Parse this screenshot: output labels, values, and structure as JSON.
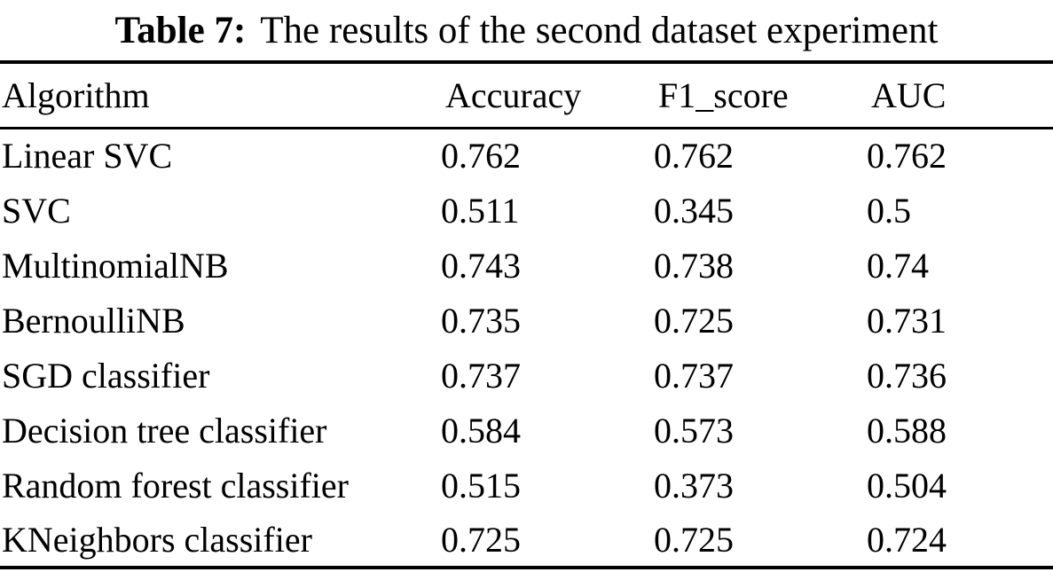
{
  "caption": {
    "label": "Table 7:",
    "text": "The results of the second dataset experiment"
  },
  "table": {
    "columns": [
      "Algorithm",
      "Accuracy",
      "F1_score",
      "AUC"
    ],
    "rows": [
      [
        "Linear SVC",
        "0.762",
        "0.762",
        "0.762"
      ],
      [
        "SVC",
        "0.511",
        "0.345",
        "0.5"
      ],
      [
        "MultinomialNB",
        "0.743",
        "0.738",
        "0.74"
      ],
      [
        "BernoulliNB",
        "0.735",
        "0.725",
        "0.731"
      ],
      [
        "SGD classifier",
        "0.737",
        "0.737",
        "0.736"
      ],
      [
        "Decision tree classifier",
        "0.584",
        "0.573",
        "0.588"
      ],
      [
        "Random forest classifier",
        "0.515",
        "0.373",
        "0.504"
      ],
      [
        "KNeighbors classifier",
        "0.725",
        "0.725",
        "0.724"
      ]
    ]
  },
  "colors": {
    "text": "#000000",
    "background": "#ffffff",
    "rule": "#000000"
  }
}
